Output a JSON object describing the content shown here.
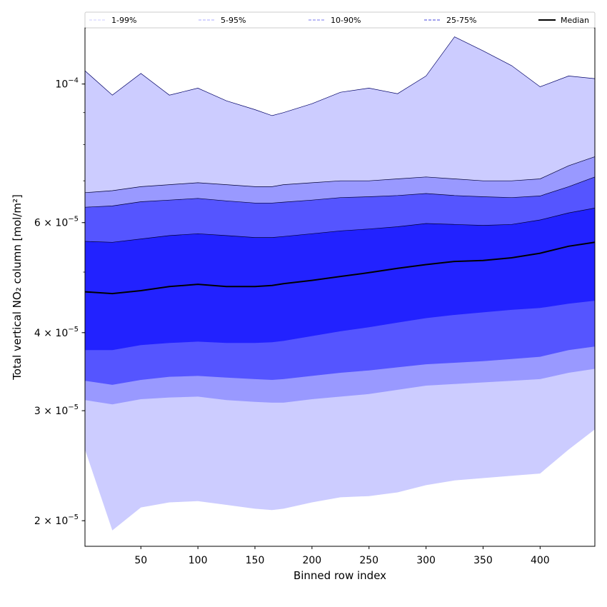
{
  "chart_data": {
    "type": "area",
    "xlabel": "Binned row index",
    "ylabel": "Total vertical NO₂ column [mol/m²]",
    "xlim": [
      1,
      448
    ],
    "ylim": [
      1.82e-05,
      0.000123
    ],
    "yscale": "log",
    "grid": false,
    "legend_position": "top",
    "x_ticks": [
      {
        "value": 50,
        "label": "50"
      },
      {
        "value": 100,
        "label": "100"
      },
      {
        "value": 150,
        "label": "150"
      },
      {
        "value": 200,
        "label": "200"
      },
      {
        "value": 250,
        "label": "250"
      },
      {
        "value": 300,
        "label": "300"
      },
      {
        "value": 350,
        "label": "350"
      },
      {
        "value": 400,
        "label": "400"
      }
    ],
    "y_ticks": [
      {
        "value": 2e-05,
        "mantissa": "2",
        "exponent": "−5",
        "label": "2 × 10⁻⁵"
      },
      {
        "value": 3e-05,
        "mantissa": "3",
        "exponent": "−5",
        "label": "3 × 10⁻⁵"
      },
      {
        "value": 4e-05,
        "mantissa": "4",
        "exponent": "−5",
        "label": "4 × 10⁻⁵"
      },
      {
        "value": 6e-05,
        "mantissa": "6",
        "exponent": "−5",
        "label": "6 × 10⁻⁵"
      },
      {
        "value": 0.0001,
        "mantissa": "",
        "exponent": "−4",
        "label": "10⁻⁴"
      }
    ],
    "x": [
      1,
      25,
      50,
      75,
      100,
      125,
      150,
      165,
      175,
      200,
      225,
      250,
      275,
      300,
      325,
      350,
      375,
      400,
      425,
      448
    ],
    "bands": [
      {
        "name": "1-99%",
        "color": "#ccccff",
        "legend_line": "#ccccff",
        "lower": [
          2.6e-05,
          1.93e-05,
          2.1e-05,
          2.14e-05,
          2.15e-05,
          2.12e-05,
          2.09e-05,
          2.08e-05,
          2.09e-05,
          2.14e-05,
          2.18e-05,
          2.19e-05,
          2.22e-05,
          2.28e-05,
          2.32e-05,
          2.34e-05,
          2.36e-05,
          2.38e-05,
          2.6e-05,
          2.8e-05
        ],
        "upper": [
          0.000105,
          9.6e-05,
          0.000104,
          9.6e-05,
          9.85e-05,
          9.4e-05,
          9.1e-05,
          8.9e-05,
          9e-05,
          9.3e-05,
          9.7e-05,
          9.85e-05,
          9.65e-05,
          0.000103,
          0.000119,
          0.000113,
          0.000107,
          9.9e-05,
          0.000103,
          0.000102
        ]
      },
      {
        "name": "5-95%",
        "color": "#9999ff",
        "legend_line": "#aaaaff",
        "lower": [
          3.12e-05,
          3.07e-05,
          3.13e-05,
          3.15e-05,
          3.16e-05,
          3.12e-05,
          3.1e-05,
          3.09e-05,
          3.09e-05,
          3.13e-05,
          3.16e-05,
          3.19e-05,
          3.24e-05,
          3.29e-05,
          3.31e-05,
          3.33e-05,
          3.35e-05,
          3.37e-05,
          3.45e-05,
          3.5e-05
        ],
        "upper": [
          6.7e-05,
          6.75e-05,
          6.85e-05,
          6.9e-05,
          6.95e-05,
          6.9e-05,
          6.85e-05,
          6.85e-05,
          6.9e-05,
          6.95e-05,
          7e-05,
          7e-05,
          7.05e-05,
          7.1e-05,
          7.05e-05,
          7e-05,
          7e-05,
          7.05e-05,
          7.4e-05,
          7.65e-05
        ]
      },
      {
        "name": "10-90%",
        "color": "#5555ff",
        "legend_line": "#7777ee",
        "lower": [
          3.35e-05,
          3.3e-05,
          3.36e-05,
          3.4e-05,
          3.41e-05,
          3.39e-05,
          3.37e-05,
          3.36e-05,
          3.37e-05,
          3.41e-05,
          3.45e-05,
          3.48e-05,
          3.52e-05,
          3.56e-05,
          3.58e-05,
          3.6e-05,
          3.63e-05,
          3.66e-05,
          3.75e-05,
          3.8e-05
        ],
        "upper": [
          6.35e-05,
          6.38e-05,
          6.48e-05,
          6.52e-05,
          6.56e-05,
          6.5e-05,
          6.45e-05,
          6.45e-05,
          6.47e-05,
          6.52e-05,
          6.58e-05,
          6.6e-05,
          6.63e-05,
          6.68e-05,
          6.63e-05,
          6.6e-05,
          6.58e-05,
          6.62e-05,
          6.85e-05,
          7.1e-05
        ]
      },
      {
        "name": "25-75%",
        "color": "#2222ff",
        "legend_line": "#4444dd",
        "lower": [
          3.75e-05,
          3.75e-05,
          3.82e-05,
          3.85e-05,
          3.87e-05,
          3.85e-05,
          3.85e-05,
          3.86e-05,
          3.88e-05,
          3.95e-05,
          4.02e-05,
          4.08e-05,
          4.15e-05,
          4.22e-05,
          4.27e-05,
          4.31e-05,
          4.35e-05,
          4.38e-05,
          4.45e-05,
          4.5e-05
        ],
        "upper": [
          5.6e-05,
          5.58e-05,
          5.65e-05,
          5.72e-05,
          5.76e-05,
          5.72e-05,
          5.68e-05,
          5.68e-05,
          5.7e-05,
          5.76e-05,
          5.82e-05,
          5.86e-05,
          5.91e-05,
          5.98e-05,
          5.96e-05,
          5.94e-05,
          5.96e-05,
          6.06e-05,
          6.22e-05,
          6.33e-05
        ]
      }
    ],
    "series": [
      {
        "name": "Median",
        "color": "#000000",
        "values": [
          4.65e-05,
          4.62e-05,
          4.67e-05,
          4.74e-05,
          4.78e-05,
          4.74e-05,
          4.74e-05,
          4.76e-05,
          4.79e-05,
          4.85e-05,
          4.92e-05,
          4.99e-05,
          5.07e-05,
          5.14e-05,
          5.2e-05,
          5.22e-05,
          5.27e-05,
          5.36e-05,
          5.5e-05,
          5.58e-05
        ]
      }
    ]
  }
}
